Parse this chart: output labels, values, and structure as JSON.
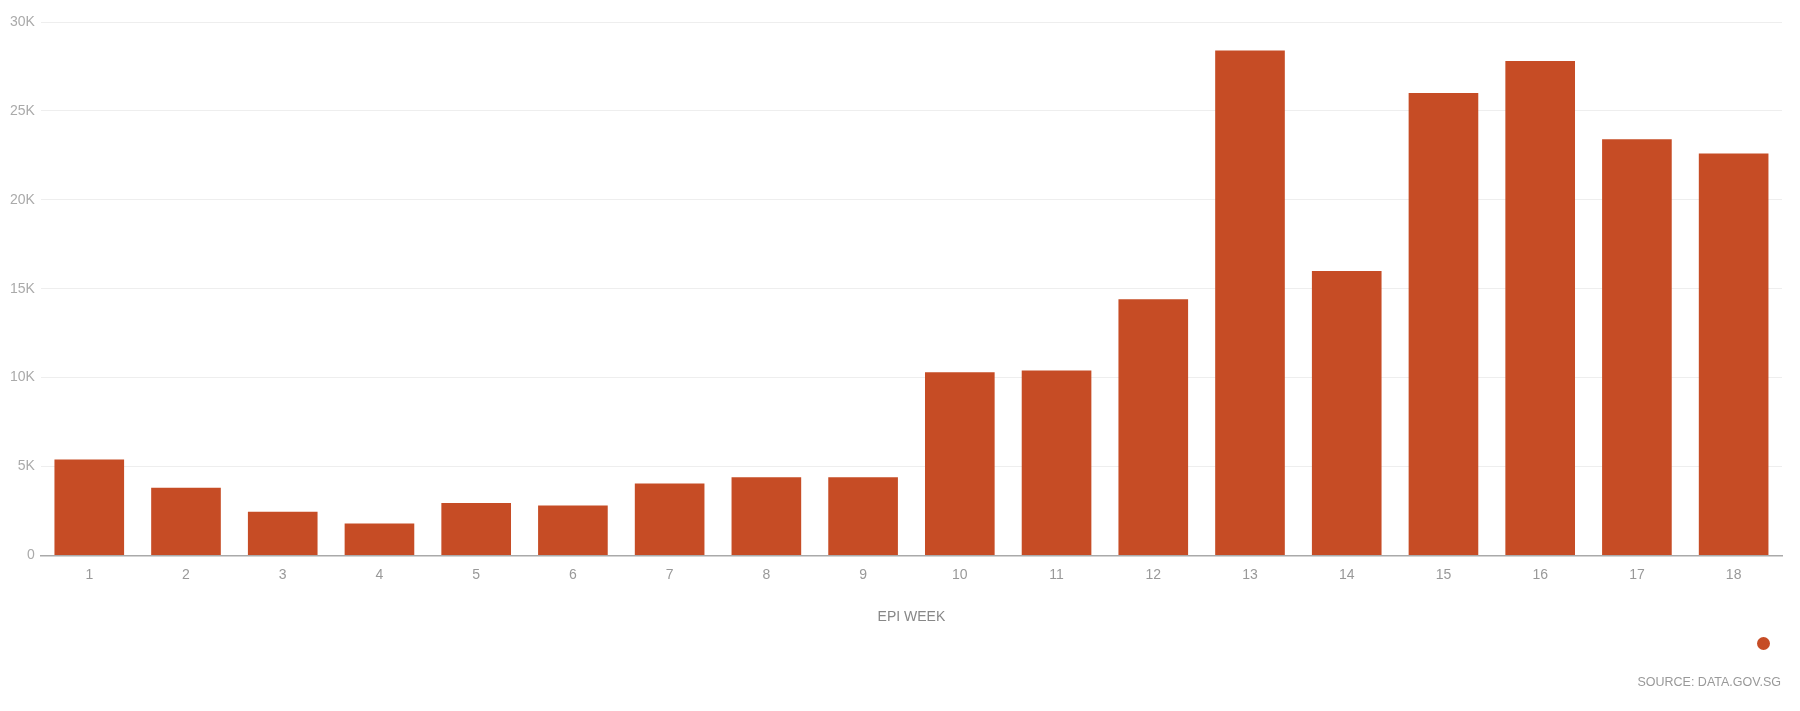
{
  "chart_data": {
    "type": "bar",
    "xlabel": "EPI WEEK",
    "categories": [
      "1",
      "2",
      "3",
      "4",
      "5",
      "6",
      "7",
      "8",
      "9",
      "10",
      "11",
      "12",
      "13",
      "14",
      "15",
      "16",
      "17",
      "18"
    ],
    "values": [
      5400,
      3800,
      2450,
      1800,
      2950,
      2800,
      4050,
      4400,
      4400,
      10300,
      10400,
      14400,
      28400,
      16000,
      26000,
      27800,
      23400,
      22600
    ],
    "color": "#c64c25",
    "ylim": [
      0,
      30000
    ],
    "yticks": [
      {
        "value": 0,
        "label": "0"
      },
      {
        "value": 5000,
        "label": "5K"
      },
      {
        "value": 10000,
        "label": "10K"
      },
      {
        "value": 15000,
        "label": "15K"
      },
      {
        "value": 20000,
        "label": "20K"
      },
      {
        "value": 25000,
        "label": "25K"
      },
      {
        "value": 30000,
        "label": "30K"
      }
    ],
    "grid": "y",
    "annotations": [
      "SOURCE: DATA.GOV.SG"
    ]
  }
}
